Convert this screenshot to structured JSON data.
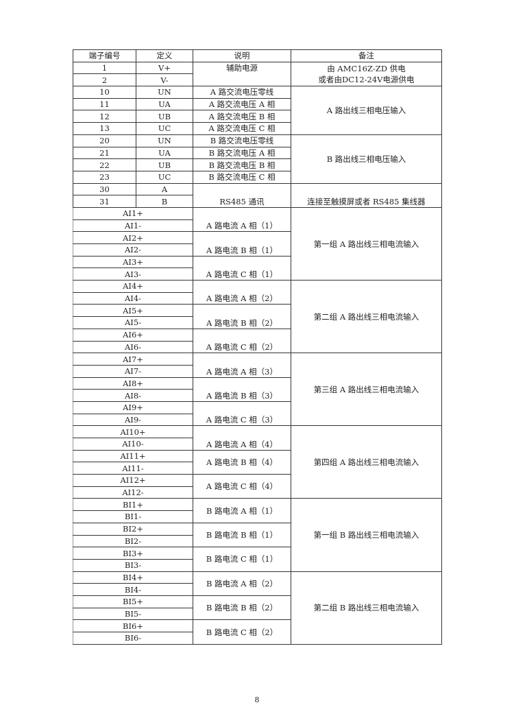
{
  "header": [
    "端子编号",
    "定义",
    "说明",
    "备注"
  ],
  "power": {
    "rows": [
      {
        "no": "1",
        "def": "V+"
      },
      {
        "no": "2",
        "def": "V-"
      }
    ],
    "desc": "辅助电源",
    "remark_lines": [
      "由 AMC16Z-ZD 供电",
      "或者由DC12-24V电源供电"
    ]
  },
  "voltage_groups": [
    {
      "rows": [
        {
          "no": "10",
          "def": "UN",
          "desc": "A 路交流电压零线"
        },
        {
          "no": "11",
          "def": "UA",
          "desc": "A 路交流电压 A 相"
        },
        {
          "no": "12",
          "def": "UB",
          "desc": "A 路交流电压 B 相"
        },
        {
          "no": "13",
          "def": "UC",
          "desc": "A 路交流电压 C 相"
        }
      ],
      "remark": "A 路出线三相电压输入"
    },
    {
      "rows": [
        {
          "no": "20",
          "def": "UN",
          "desc": "B 路交流电压零线"
        },
        {
          "no": "21",
          "def": "UA",
          "desc": "B 路交流电压 A 相"
        },
        {
          "no": "22",
          "def": "UB",
          "desc": "B 路交流电压 B 相"
        },
        {
          "no": "23",
          "def": "UC",
          "desc": "B 路交流电压 C 相"
        }
      ],
      "remark": "B 路出线三相电压输入"
    }
  ],
  "rs485": {
    "rows": [
      {
        "no": "30",
        "def": "A"
      },
      {
        "no": "31",
        "def": "B"
      }
    ],
    "desc": "RS485 通讯",
    "remark": "连接至触摸屏或者 RS485 集线器"
  },
  "current_groups": [
    {
      "pairs": [
        {
          "terms": [
            "AI1+",
            "AI1-"
          ],
          "desc": "A 路电流 A 相（1）"
        },
        {
          "terms": [
            "AI2+",
            "AI2-"
          ],
          "desc": "A 路电流 B 相（1）"
        },
        {
          "terms": [
            "AI3+",
            "AI3-"
          ],
          "desc": "A 路电流 C 相（1）"
        }
      ],
      "remark": "第一组 A 路出线三相电流输入"
    },
    {
      "pairs": [
        {
          "terms": [
            "AI4+",
            "AI4-"
          ],
          "desc": "A 路电流 A 相（2）"
        },
        {
          "terms": [
            "AI5+",
            "AI5-"
          ],
          "desc": "A 路电流 B 相（2）"
        },
        {
          "terms": [
            "AI6+",
            "AI6-"
          ],
          "desc": "A 路电流 C 相（2）"
        }
      ],
      "remark": "第二组 A 路出线三相电流输入"
    },
    {
      "pairs": [
        {
          "terms": [
            "AI7+",
            "AI7-"
          ],
          "desc": "A 路电流 A 相（3）"
        },
        {
          "terms": [
            "AI8+",
            "AI8-"
          ],
          "desc": "A 路电流 B 相（3）"
        },
        {
          "terms": [
            "AI9+",
            "AI9-"
          ],
          "desc": "A 路电流 C 相（3）"
        }
      ],
      "remark": "第三组 A 路出线三相电流输入"
    },
    {
      "pairs": [
        {
          "terms": [
            "AI10+",
            "AI10-"
          ],
          "desc": "A 路电流 A 相（4）"
        },
        {
          "terms": [
            "AI11+",
            "AI11-"
          ],
          "desc": "A 路电流 B 相（4）"
        },
        {
          "terms": [
            "AI12+",
            "AI12-"
          ],
          "desc": "A 路电流 C 相（4）"
        }
      ],
      "remark": "第四组 A 路出线三相电流输入"
    },
    {
      "pairs": [
        {
          "terms": [
            "BI1+",
            "BI1-"
          ],
          "desc": "B 路电流 A 相（1）"
        },
        {
          "terms": [
            "BI2+",
            "BI2-"
          ],
          "desc": "B 路电流 B 相（1）"
        },
        {
          "terms": [
            "BI3+",
            "BI3-"
          ],
          "desc": "B 路电流 C 相（1）"
        }
      ],
      "remark": "第一组 B 路出线三相电流输入"
    },
    {
      "pairs": [
        {
          "terms": [
            "BI4+",
            "BI4-"
          ],
          "desc": "B 路电流 A 相（2）"
        },
        {
          "terms": [
            "BI5+",
            "BI5-"
          ],
          "desc": "B 路电流 B 相（2）"
        },
        {
          "terms": [
            "BI6+",
            "BI6-"
          ],
          "desc": "B 路电流 C 相（2）"
        }
      ],
      "remark": "第二组 B 路出线三相电流输入"
    }
  ],
  "page_number": "8"
}
